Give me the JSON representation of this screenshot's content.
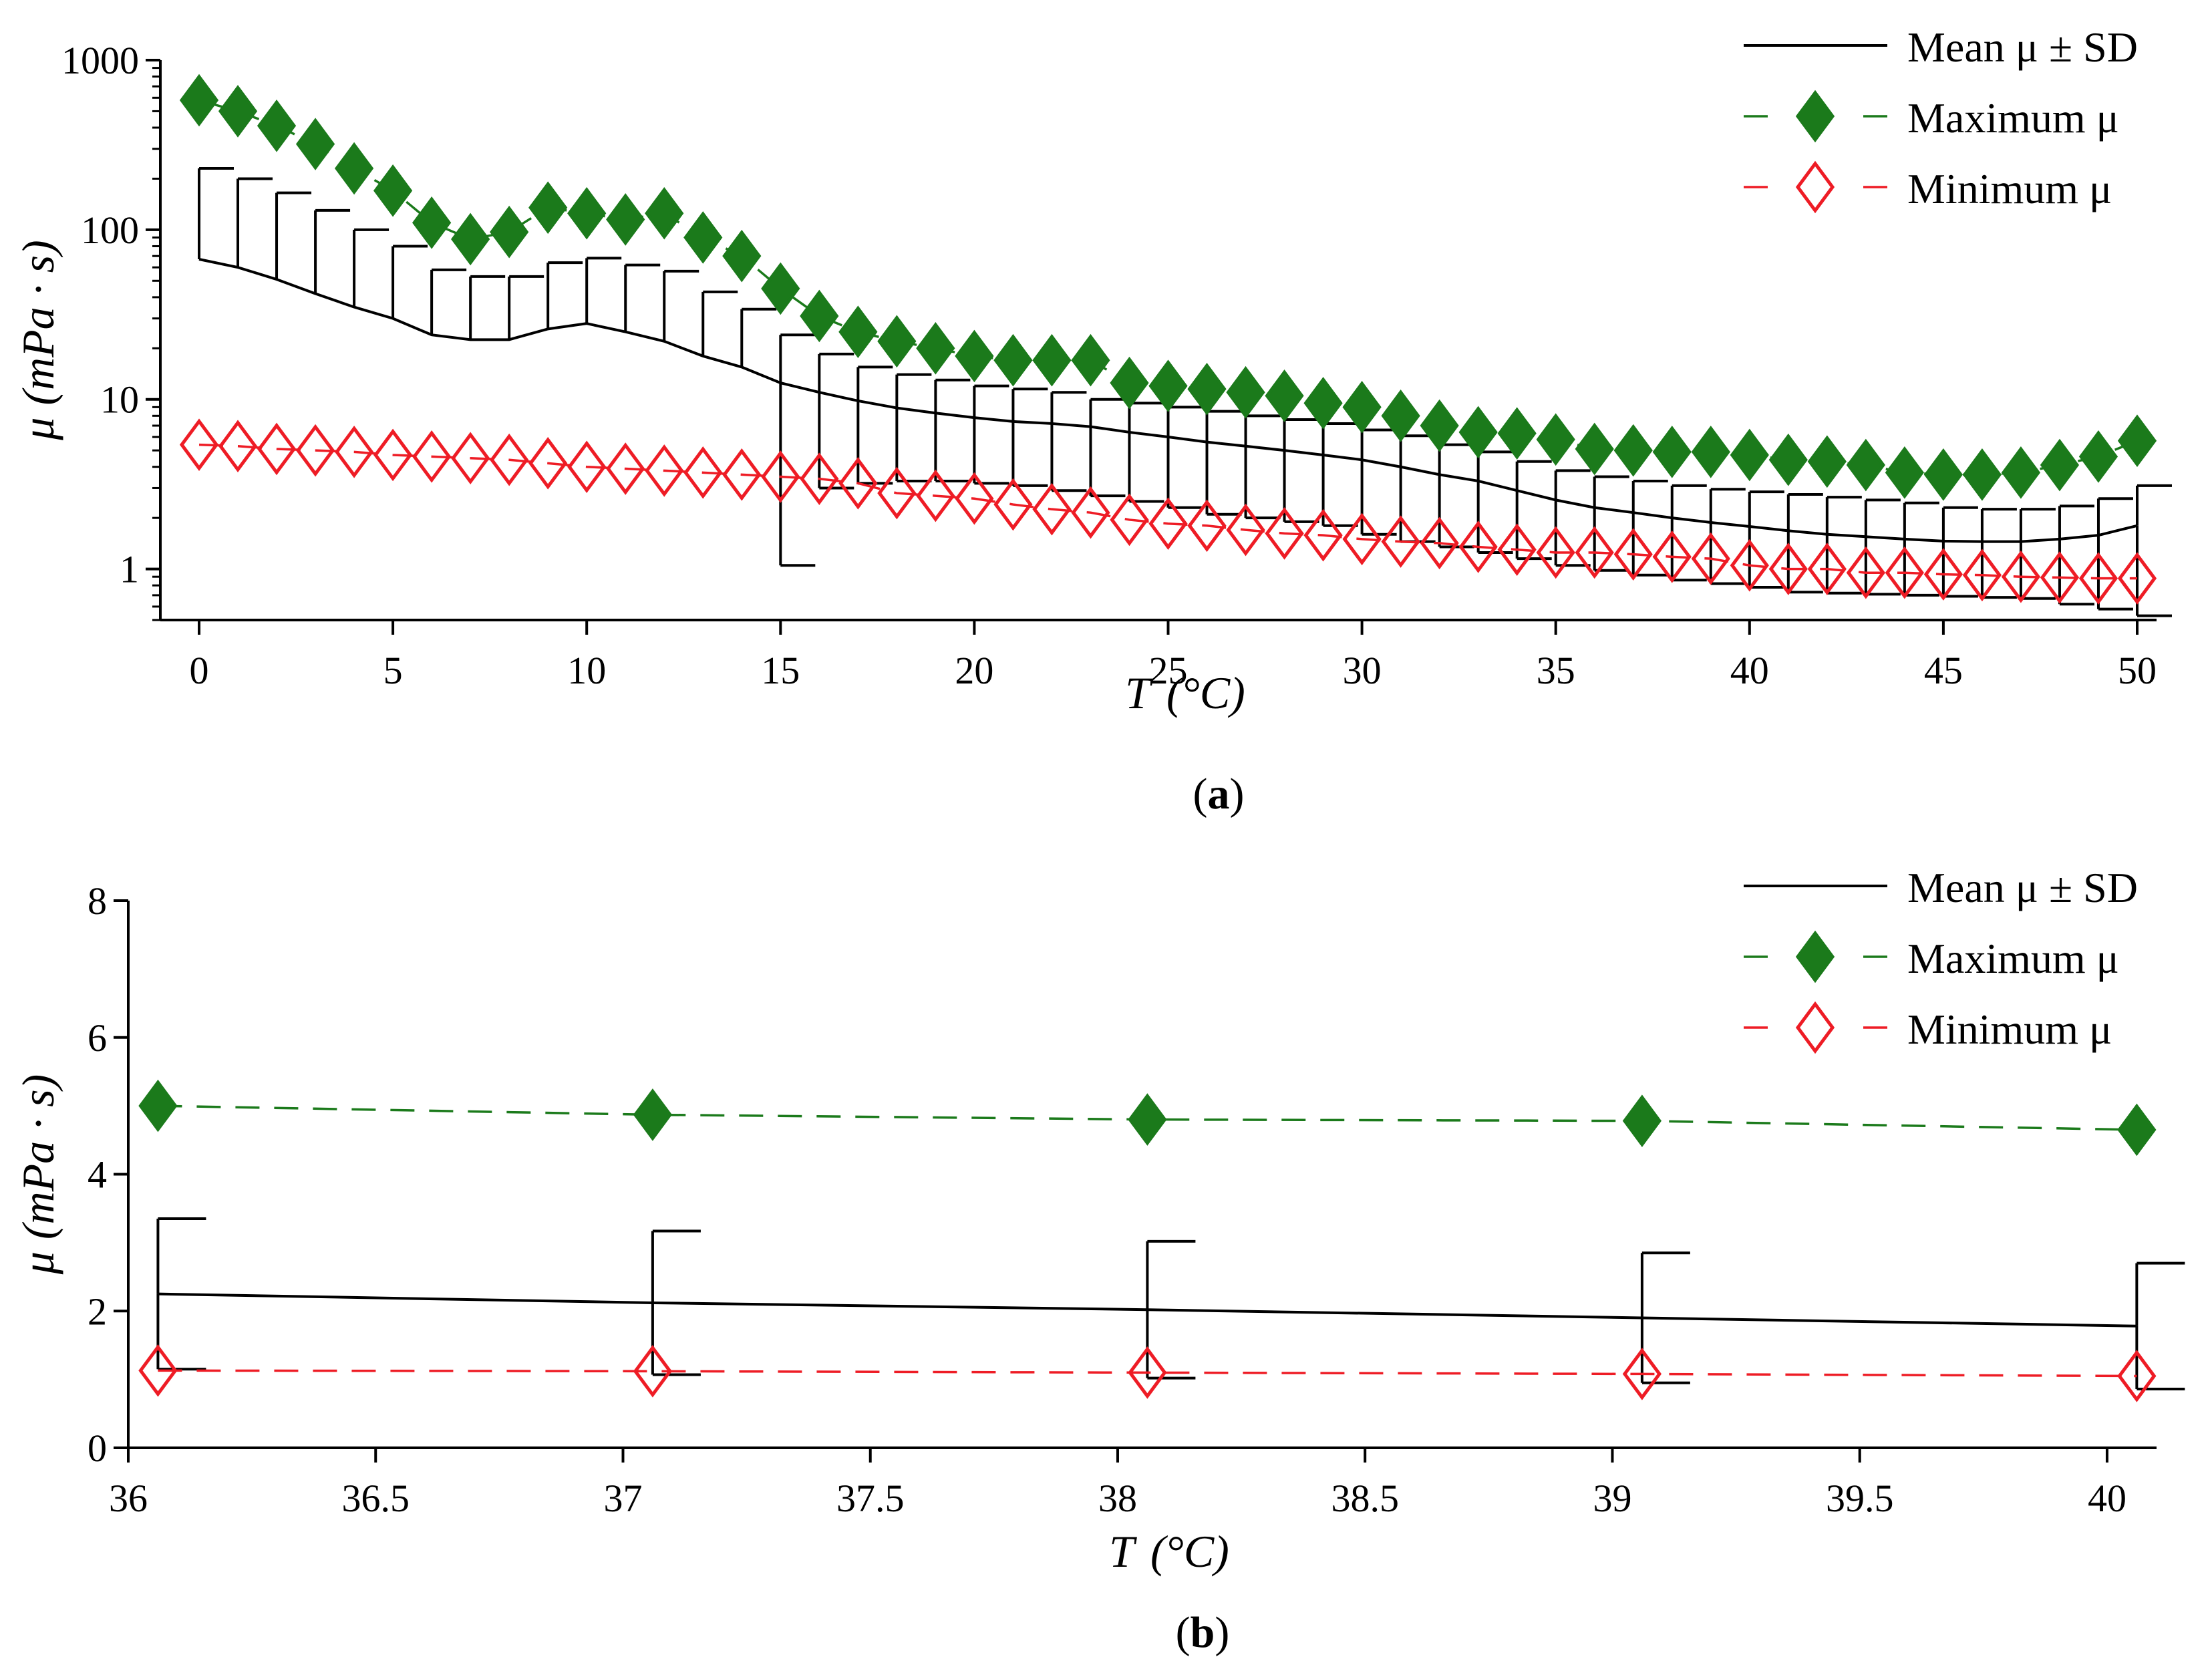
{
  "chart_data": [
    {
      "id": "a",
      "type": "line",
      "caption_label": "a",
      "xlabel_var": "T",
      "xlabel_unit": "(°C)",
      "ylabel_var": "μ",
      "ylabel_unit": "(mPa · s)",
      "xlim": [
        -1,
        50.5
      ],
      "ylim": [
        0.5,
        1000
      ],
      "yscale": "log",
      "xticks": [
        0,
        5,
        10,
        15,
        20,
        25,
        30,
        35,
        40,
        45,
        50
      ],
      "yticks": [
        1,
        10,
        100,
        1000
      ],
      "legend": [
        "Mean μ ± SD",
        "Maximum μ",
        "Minimum μ"
      ],
      "legend_position": "top-right",
      "colors": {
        "mean": "#000000",
        "max": "#1b7a1b",
        "min": "#ee1c25"
      },
      "x": [
        0,
        1,
        2,
        3,
        4,
        5,
        6,
        7,
        8,
        9,
        10,
        11,
        12,
        13,
        14,
        15,
        16,
        17,
        18,
        19,
        20,
        21,
        22,
        23,
        24,
        25,
        26,
        27,
        28,
        29,
        30,
        31,
        32,
        33,
        34,
        35,
        36,
        37,
        38,
        39,
        40,
        41,
        42,
        43,
        44,
        45,
        46,
        47,
        48,
        49,
        50
      ],
      "series": [
        {
          "name": "Mean μ",
          "values": [
            67,
            60,
            51,
            42,
            35,
            30,
            24,
            22.5,
            22.5,
            26,
            28,
            25,
            22,
            18,
            15.5,
            12.5,
            11,
            9.8,
            8.9,
            8.3,
            7.8,
            7.4,
            7.2,
            6.9,
            6.4,
            6.0,
            5.6,
            5.3,
            5.0,
            4.7,
            4.4,
            4.0,
            3.6,
            3.3,
            2.9,
            2.55,
            2.3,
            2.15,
            2.0,
            1.88,
            1.78,
            1.68,
            1.6,
            1.55,
            1.5,
            1.46,
            1.45,
            1.45,
            1.5,
            1.58,
            1.8
          ]
        },
        {
          "name": "SD upper",
          "values": [
            230,
            200,
            165,
            130,
            100,
            80,
            58,
            53,
            53,
            64,
            68,
            62,
            57,
            43,
            34,
            24,
            18.5,
            15.5,
            14,
            13,
            12,
            11.5,
            11,
            10,
            9.5,
            9,
            8.5,
            8,
            7.6,
            7.2,
            6.6,
            6.1,
            5.4,
            4.9,
            4.3,
            3.8,
            3.5,
            3.3,
            3.1,
            2.95,
            2.85,
            2.75,
            2.65,
            2.55,
            2.45,
            2.3,
            2.25,
            2.25,
            2.35,
            2.6,
            3.1
          ]
        },
        {
          "name": "SD lower",
          "values": [
            null,
            null,
            null,
            null,
            null,
            null,
            null,
            null,
            null,
            null,
            null,
            null,
            null,
            null,
            null,
            1.05,
            3.0,
            3.2,
            3.3,
            3.3,
            3.2,
            3.1,
            2.9,
            2.7,
            2.5,
            2.3,
            2.1,
            2.0,
            1.9,
            1.8,
            1.6,
            1.45,
            1.35,
            1.25,
            1.15,
            1.05,
            0.98,
            0.92,
            0.86,
            0.82,
            0.78,
            0.73,
            0.72,
            0.71,
            0.7,
            0.69,
            0.68,
            0.67,
            0.62,
            0.58,
            0.53
          ]
        },
        {
          "name": "Maximum μ",
          "values": [
            580,
            500,
            410,
            320,
            230,
            170,
            110,
            88,
            97,
            135,
            125,
            115,
            125,
            90,
            70,
            45,
            31,
            25,
            22,
            20,
            18,
            17,
            17,
            17,
            12.5,
            12,
            11.5,
            11,
            10.5,
            9.5,
            9,
            8,
            7,
            6.4,
            6.3,
            5.8,
            5.1,
            5.0,
            4.9,
            4.9,
            4.7,
            4.4,
            4.3,
            4.1,
            3.7,
            3.6,
            3.6,
            3.7,
            4.1,
            4.6,
            5.7
          ]
        },
        {
          "name": "Minimum μ",
          "values": [
            5.4,
            5.3,
            5.1,
            5.0,
            4.9,
            4.7,
            4.6,
            4.5,
            4.4,
            4.2,
            4.0,
            3.9,
            3.8,
            3.7,
            3.6,
            3.5,
            3.4,
            3.2,
            2.8,
            2.7,
            2.6,
            2.4,
            2.25,
            2.15,
            1.95,
            1.85,
            1.8,
            1.7,
            1.62,
            1.58,
            1.5,
            1.45,
            1.42,
            1.35,
            1.3,
            1.25,
            1.25,
            1.22,
            1.18,
            1.15,
            1.05,
            1.0,
            1.0,
            0.95,
            0.95,
            0.93,
            0.92,
            0.9,
            0.89,
            0.88,
            0.88
          ]
        }
      ]
    },
    {
      "id": "b",
      "type": "line",
      "caption_label": "b",
      "xlabel_var": "T",
      "xlabel_unit": "(°C)",
      "ylabel_var": "μ",
      "ylabel_unit": "(mPa · s)",
      "xlim": [
        36,
        40.1
      ],
      "ylim": [
        0,
        8
      ],
      "yscale": "linear",
      "xticks": [
        36,
        36.5,
        37,
        37.5,
        38,
        38.5,
        39,
        39.5,
        40
      ],
      "xtick_labels": [
        "36",
        "36.5",
        "37",
        "37.5",
        "38",
        "38.5",
        "39",
        "39.5",
        "40"
      ],
      "yticks": [
        0,
        2,
        4,
        6,
        8
      ],
      "legend": [
        "Mean μ ± SD",
        "Maximum μ",
        "Minimum μ"
      ],
      "legend_position": "top-right",
      "colors": {
        "mean": "#000000",
        "max": "#1b7a1b",
        "min": "#ee1c25"
      },
      "x": [
        36.06,
        37.06,
        38.06,
        39.06,
        40.06
      ],
      "series": [
        {
          "name": "Mean μ",
          "values": [
            2.25,
            2.12,
            2.02,
            1.9,
            1.78
          ]
        },
        {
          "name": "SD upper",
          "values": [
            3.35,
            3.17,
            3.02,
            2.85,
            2.7
          ]
        },
        {
          "name": "SD lower",
          "values": [
            1.15,
            1.07,
            1.02,
            0.95,
            0.86
          ]
        },
        {
          "name": "Maximum μ",
          "values": [
            5.0,
            4.87,
            4.8,
            4.78,
            4.65
          ]
        },
        {
          "name": "Minimum μ",
          "values": [
            1.13,
            1.12,
            1.1,
            1.08,
            1.05
          ]
        }
      ]
    }
  ]
}
